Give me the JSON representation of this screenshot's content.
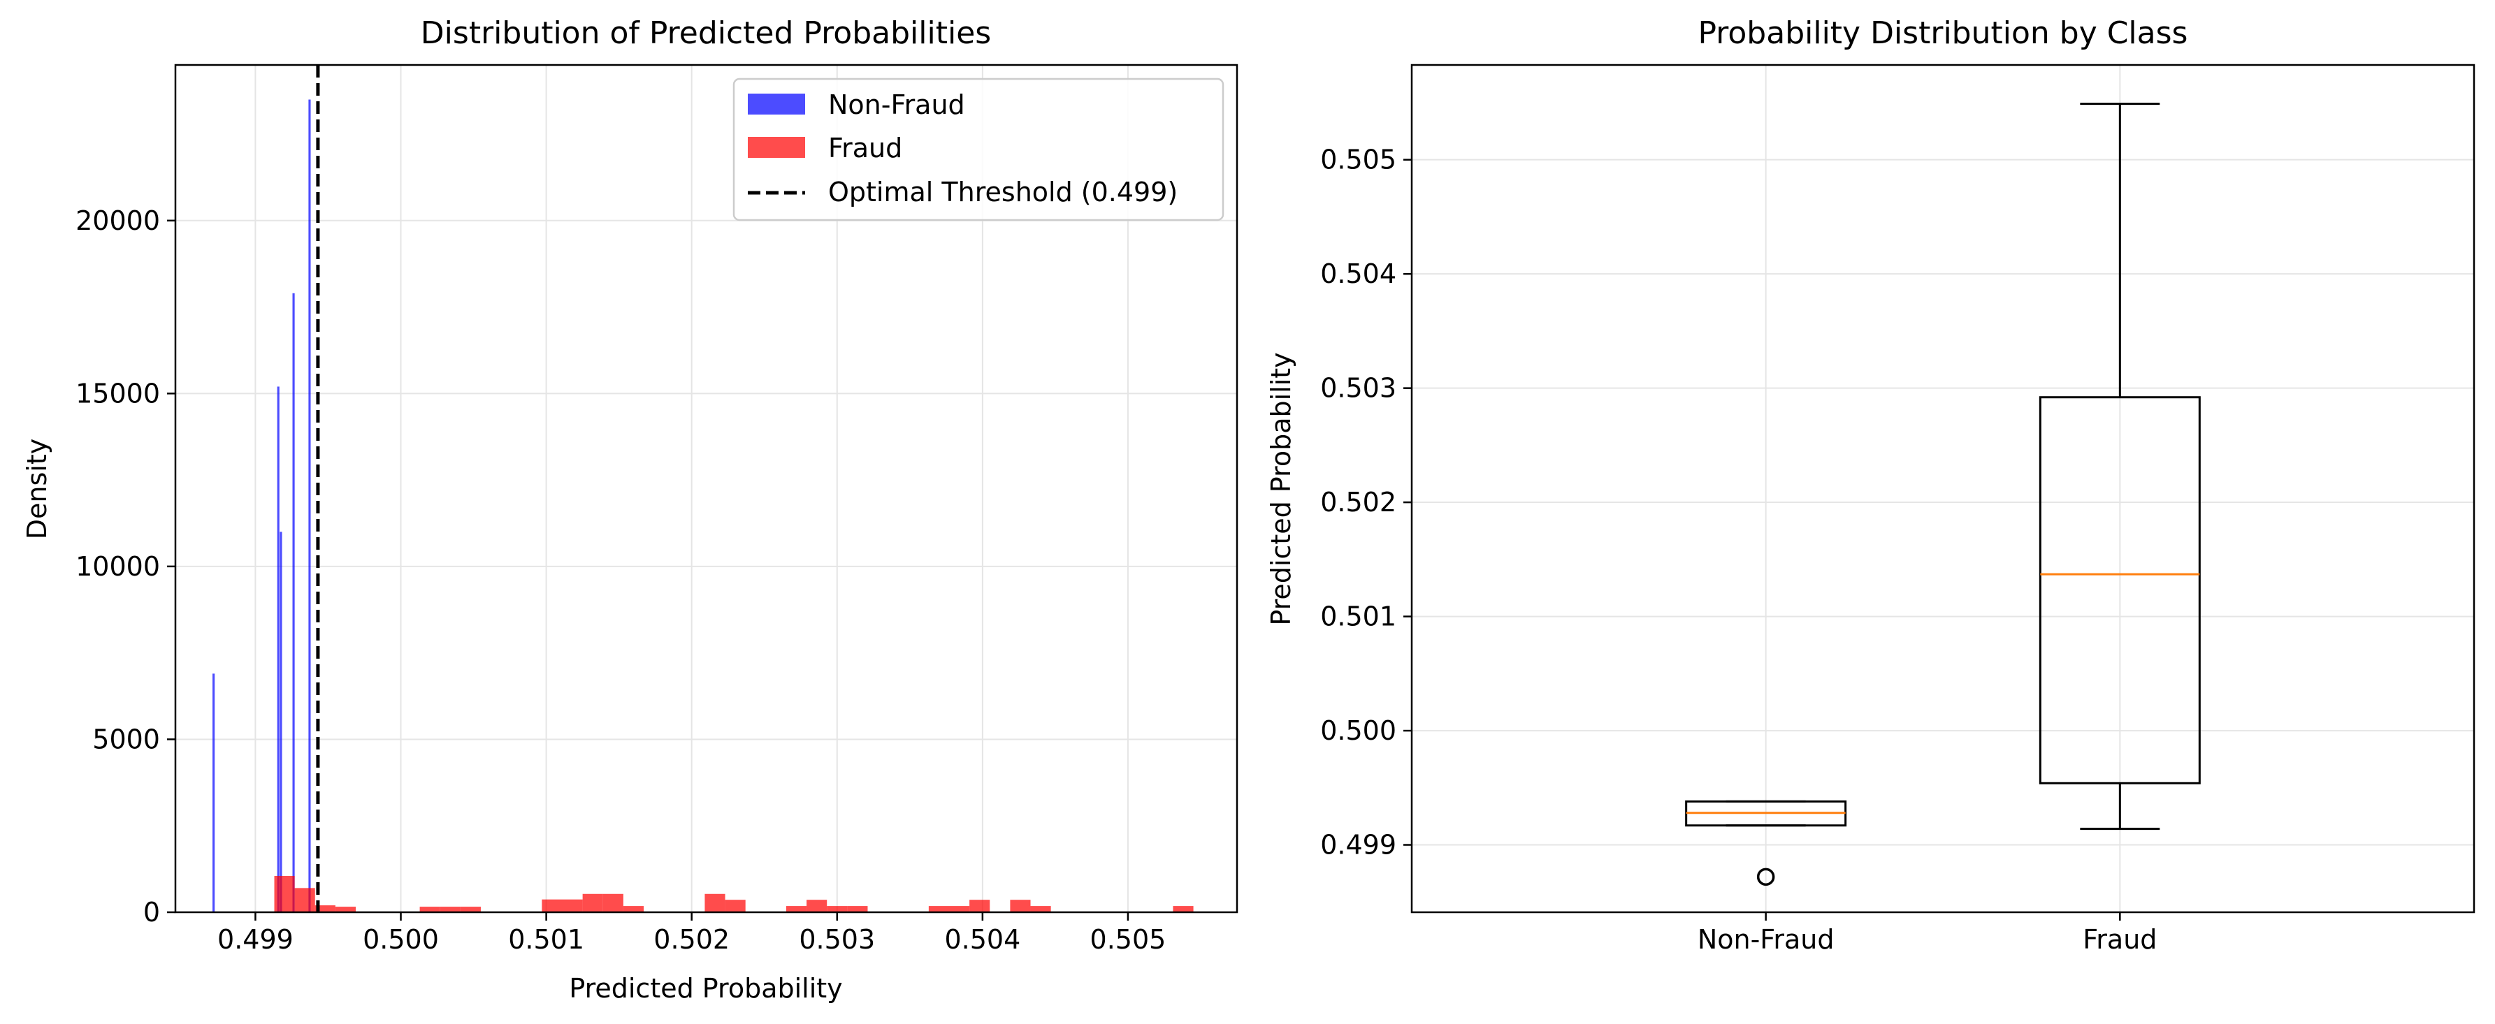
{
  "chart_data": [
    {
      "type": "histogram",
      "title": "Distribution of Predicted Probabilities",
      "xlabel": "Predicted Probability",
      "ylabel": "Density",
      "xlim": [
        0.49845,
        0.50575
      ],
      "ylim": [
        0,
        24500
      ],
      "xticks": [
        0.499,
        0.5,
        0.501,
        0.502,
        0.503,
        0.504,
        0.505
      ],
      "xtick_labels": [
        "0.499",
        "0.500",
        "0.501",
        "0.502",
        "0.503",
        "0.504",
        "0.505"
      ],
      "yticks": [
        0,
        5000,
        10000,
        15000,
        20000
      ],
      "ytick_labels": [
        "0",
        "5000",
        "10000",
        "15000",
        "20000"
      ],
      "grid": true,
      "legend_position": "top-right",
      "series": [
        {
          "name": "Non-Fraud",
          "color": "#0000ff",
          "bars": [
            {
              "x0": 0.498705,
              "x1": 0.49872,
              "value": 6900
            },
            {
              "x0": 0.49915,
              "x1": 0.499165,
              "value": 15200
            },
            {
              "x0": 0.499168,
              "x1": 0.499183,
              "value": 11000
            },
            {
              "x0": 0.499255,
              "x1": 0.49927,
              "value": 17900
            },
            {
              "x0": 0.499365,
              "x1": 0.49938,
              "value": 23500
            }
          ]
        },
        {
          "name": "Fraud",
          "color": "#ff0000",
          "bars": [
            {
              "x0": 0.49913,
              "x1": 0.49927,
              "value": 1050
            },
            {
              "x0": 0.49927,
              "x1": 0.49941,
              "value": 700
            },
            {
              "x0": 0.49941,
              "x1": 0.49955,
              "value": 200
            },
            {
              "x0": 0.49955,
              "x1": 0.49969,
              "value": 160
            },
            {
              "x0": 0.50013,
              "x1": 0.50027,
              "value": 160
            },
            {
              "x0": 0.50027,
              "x1": 0.50041,
              "value": 160
            },
            {
              "x0": 0.50041,
              "x1": 0.50055,
              "value": 160
            },
            {
              "x0": 0.50097,
              "x1": 0.50111,
              "value": 370
            },
            {
              "x0": 0.50111,
              "x1": 0.50125,
              "value": 370
            },
            {
              "x0": 0.50125,
              "x1": 0.50139,
              "value": 530
            },
            {
              "x0": 0.50139,
              "x1": 0.50153,
              "value": 530
            },
            {
              "x0": 0.50153,
              "x1": 0.50167,
              "value": 180
            },
            {
              "x0": 0.50209,
              "x1": 0.50223,
              "value": 530
            },
            {
              "x0": 0.50223,
              "x1": 0.50237,
              "value": 360
            },
            {
              "x0": 0.50265,
              "x1": 0.50279,
              "value": 180
            },
            {
              "x0": 0.50279,
              "x1": 0.50293,
              "value": 360
            },
            {
              "x0": 0.50293,
              "x1": 0.50307,
              "value": 180
            },
            {
              "x0": 0.50307,
              "x1": 0.50321,
              "value": 180
            },
            {
              "x0": 0.50363,
              "x1": 0.50377,
              "value": 180
            },
            {
              "x0": 0.50377,
              "x1": 0.50391,
              "value": 180
            },
            {
              "x0": 0.50391,
              "x1": 0.50405,
              "value": 360
            },
            {
              "x0": 0.50405,
              "x1": 0.50419,
              "value": 0
            },
            {
              "x0": 0.50419,
              "x1": 0.50433,
              "value": 360
            },
            {
              "x0": 0.50433,
              "x1": 0.50447,
              "value": 180
            },
            {
              "x0": 0.50531,
              "x1": 0.50545,
              "value": 180
            }
          ]
        }
      ],
      "threshold": {
        "label": "Optimal Threshold (0.499)",
        "x": 0.49943,
        "color": "#000000"
      }
    },
    {
      "type": "box",
      "title": "Probability Distribution by Class",
      "ylabel": "Predicted Probability",
      "ylim": [
        0.49841,
        0.50583
      ],
      "yticks": [
        0.499,
        0.5,
        0.501,
        0.502,
        0.503,
        0.504,
        0.505
      ],
      "ytick_labels": [
        "0.499",
        "0.500",
        "0.501",
        "0.502",
        "0.503",
        "0.504",
        "0.505"
      ],
      "categories": [
        "Non-Fraud",
        "Fraud"
      ],
      "grid": true,
      "median_color": "#ff7f0e",
      "boxes": [
        {
          "name": "Non-Fraud",
          "whisker_low": 0.49917,
          "q1": 0.49917,
          "median": 0.49928,
          "q3": 0.49938,
          "whisker_high": 0.49938,
          "outliers": [
            0.49872
          ]
        },
        {
          "name": "Fraud",
          "whisker_low": 0.49914,
          "q1": 0.49954,
          "median": 0.50137,
          "q3": 0.50292,
          "whisker_high": 0.50549,
          "outliers": []
        }
      ]
    }
  ]
}
